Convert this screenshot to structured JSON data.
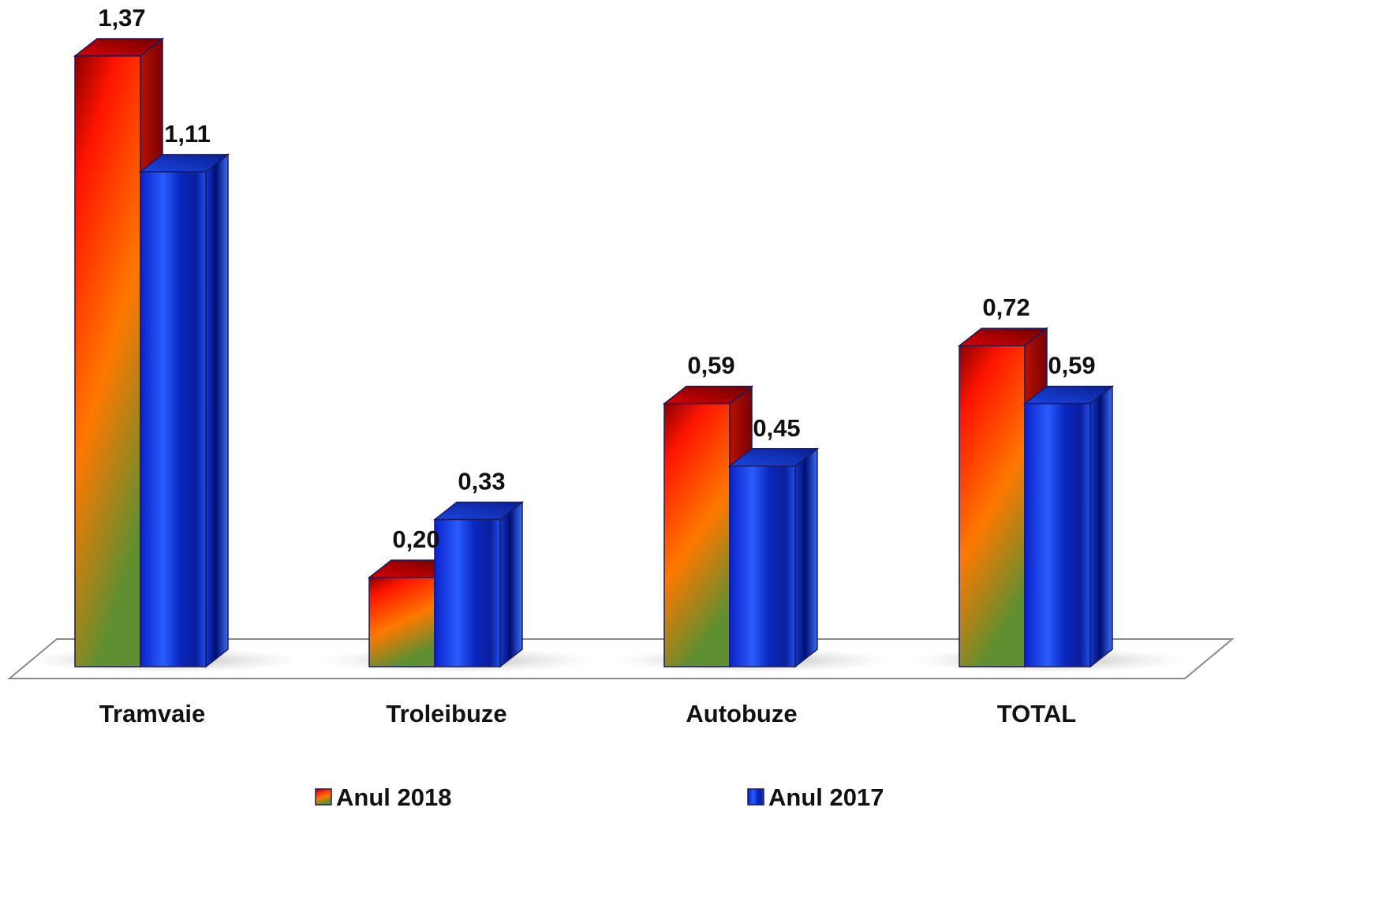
{
  "chart_data": {
    "type": "bar",
    "title": "",
    "xlabel": "",
    "ylabel": "",
    "ylim": [
      0,
      1.4
    ],
    "grid": false,
    "legend_position": "bottom",
    "categories": [
      "Tramvaie",
      "Troleibuze",
      "Autobuze",
      "TOTAL"
    ],
    "series": [
      {
        "name": "Anul 2018",
        "values": [
          1.37,
          0.2,
          0.59,
          0.72
        ],
        "labels": [
          "1,37",
          "0,20",
          "0,59",
          "0,72"
        ],
        "color": "#ff2000"
      },
      {
        "name": "Anul 2017",
        "values": [
          1.11,
          0.33,
          0.45,
          0.59
        ],
        "labels": [
          "1,11",
          "0,33",
          "0,45",
          "0,59"
        ],
        "color": "#1030e0"
      }
    ]
  }
}
